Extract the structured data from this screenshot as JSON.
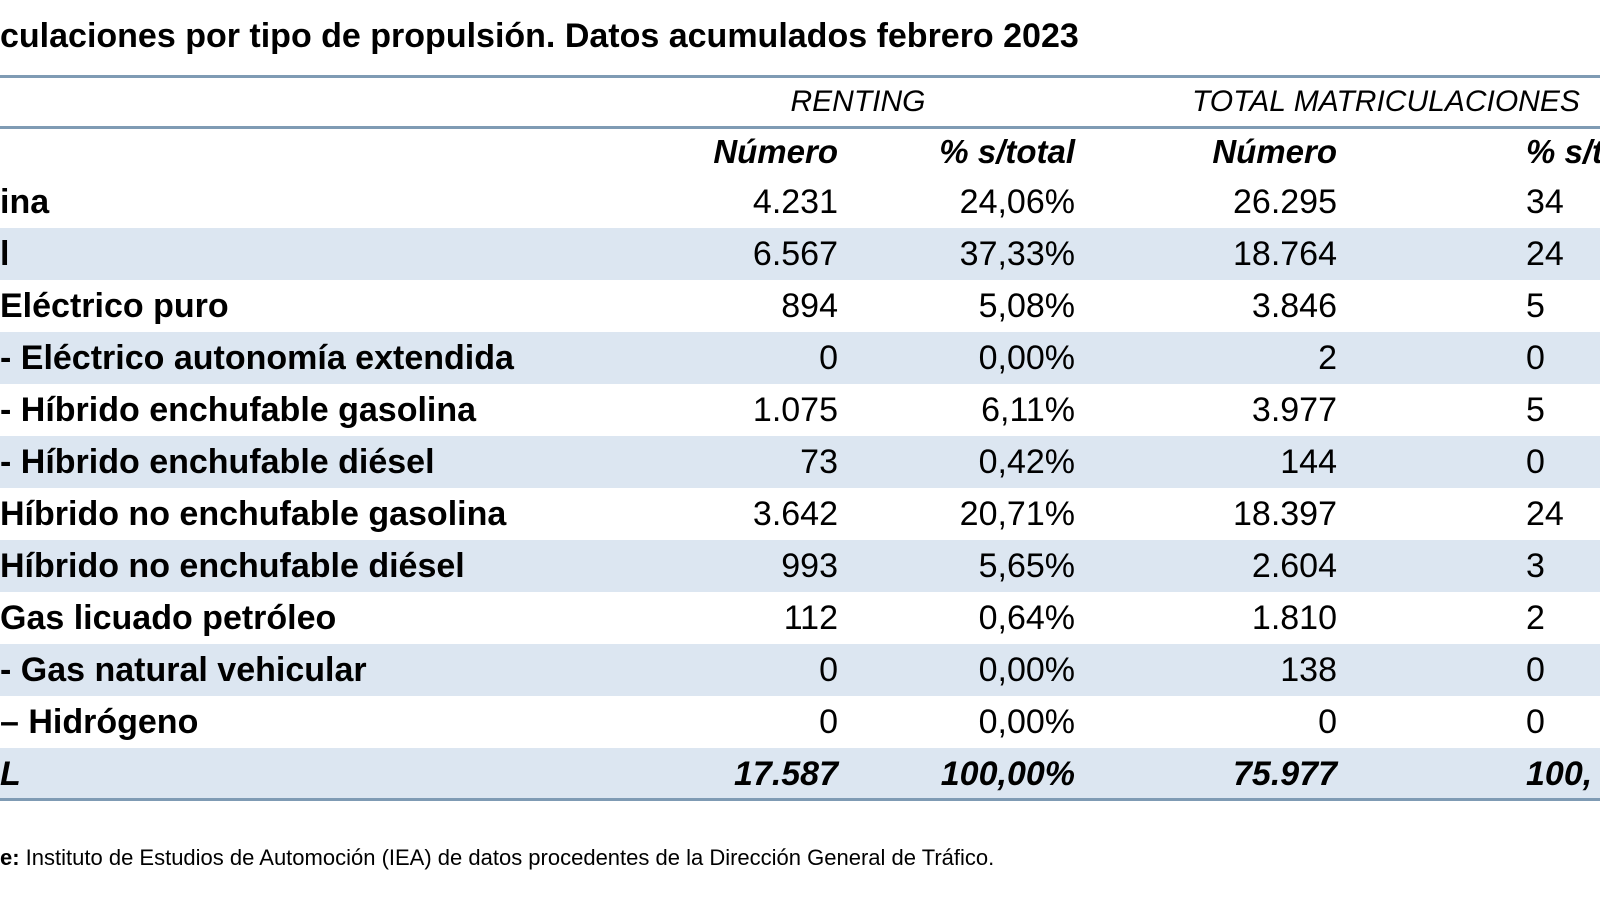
{
  "title": "culaciones por tipo de propulsión. Datos acumulados febrero 2023",
  "groups": {
    "renting": "RENTING",
    "total": "TOTAL MATRICULACIONES"
  },
  "columns": {
    "renting_numero": "Número",
    "renting_pct": "% s/total",
    "total_numero": "Número",
    "total_pct": "% s/t"
  },
  "rows": [
    {
      "label": "ina",
      "r_num": "4.231",
      "r_pct": "24,06%",
      "t_num": "26.295",
      "t_pct": "34"
    },
    {
      "label": "l",
      "r_num": "6.567",
      "r_pct": "37,33%",
      "t_num": "18.764",
      "t_pct": "24"
    },
    {
      "label": " Eléctrico puro",
      "r_num": "894",
      "r_pct": "5,08%",
      "t_num": "3.846",
      "t_pct": "5"
    },
    {
      "label": "- Eléctrico autonomía extendida",
      "r_num": "0",
      "r_pct": "0,00%",
      "t_num": "2",
      "t_pct": "0"
    },
    {
      "label": "- Híbrido enchufable gasolina",
      "r_num": "1.075",
      "r_pct": "6,11%",
      "t_num": "3.977",
      "t_pct": "5"
    },
    {
      "label": "- Híbrido enchufable diésel",
      "r_num": "73",
      "r_pct": "0,42%",
      "t_num": "144",
      "t_pct": "0"
    },
    {
      "label": " Híbrido no enchufable gasolina",
      "r_num": "3.642",
      "r_pct": "20,71%",
      "t_num": "18.397",
      "t_pct": "24"
    },
    {
      "label": " Híbrido no enchufable diésel",
      "r_num": "993",
      "r_pct": "5,65%",
      "t_num": "2.604",
      "t_pct": "3"
    },
    {
      "label": " Gas licuado petróleo",
      "r_num": "112",
      "r_pct": "0,64%",
      "t_num": "1.810",
      "t_pct": "2"
    },
    {
      "label": "- Gas natural vehicular",
      "r_num": "0",
      "r_pct": "0,00%",
      "t_num": "138",
      "t_pct": "0"
    },
    {
      "label": "– Hidrógeno",
      "r_num": "0",
      "r_pct": "0,00%",
      "t_num": "0",
      "t_pct": "0"
    },
    {
      "label": "L",
      "r_num": "17.587",
      "r_pct": "100,00%",
      "t_num": "75.977",
      "t_pct": "100,"
    }
  ],
  "note": {
    "prefix": "e:",
    "text": " Instituto de Estudios de Automoción (IEA) de datos procedentes de la Dirección General de Tráfico."
  }
}
